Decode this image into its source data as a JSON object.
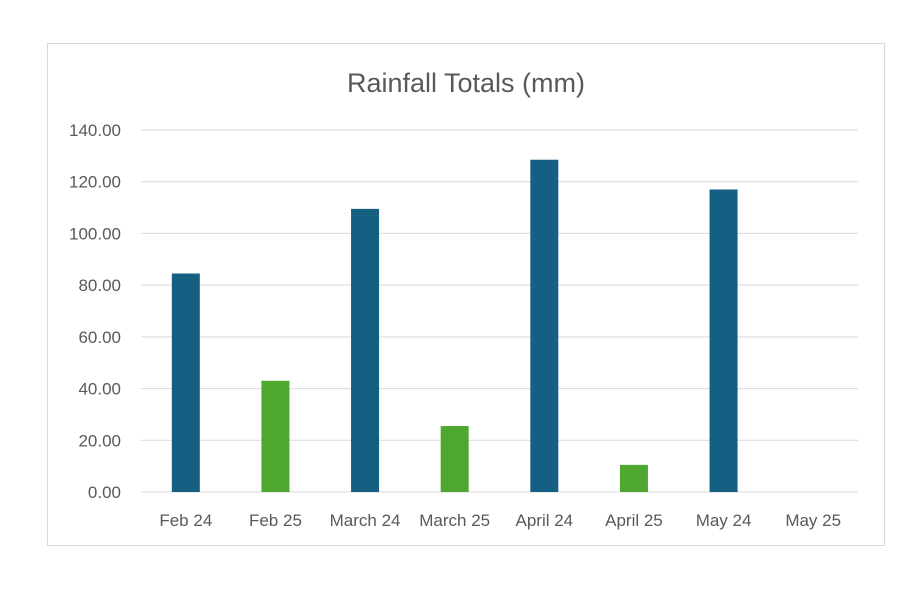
{
  "chart_data": {
    "type": "bar",
    "title": "Rainfall Totals (mm)",
    "xlabel": "",
    "ylabel": "",
    "ylim": [
      0,
      140
    ],
    "yticks": [
      "0.00",
      "20.00",
      "40.00",
      "60.00",
      "80.00",
      "100.00",
      "120.00",
      "140.00"
    ],
    "ytick_values": [
      0,
      20,
      40,
      60,
      80,
      100,
      120,
      140
    ],
    "grid": true,
    "legend": "none",
    "categories": [
      "Feb 24",
      "Feb 25",
      "March 24",
      "March 25",
      "April 24",
      "April 25",
      "May 24",
      "May 25"
    ],
    "values": [
      84.5,
      43.0,
      109.5,
      25.5,
      128.5,
      10.5,
      117.0,
      0
    ],
    "colors": {
      "year_24": "#155f82",
      "year_25": "#4ea72e"
    }
  }
}
